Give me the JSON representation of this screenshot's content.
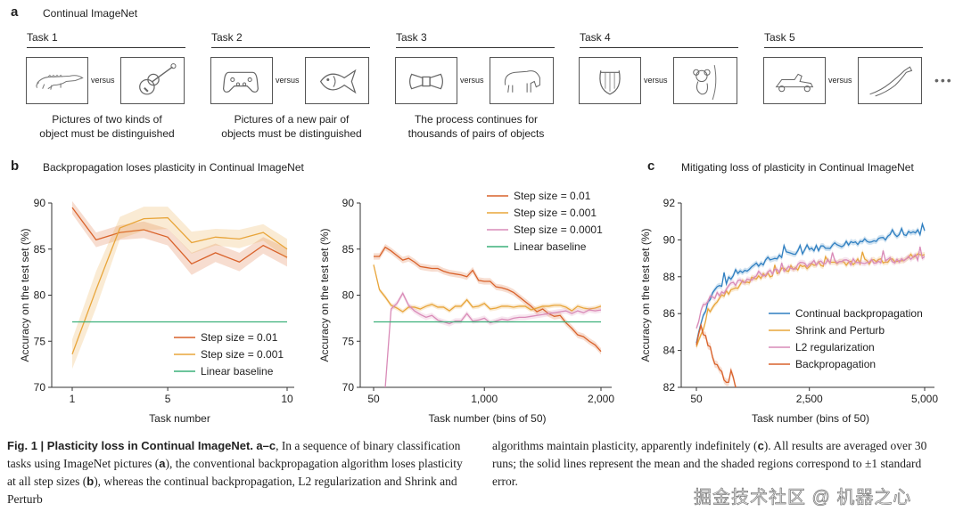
{
  "panel_a": {
    "letter": "a",
    "title": "Continual ImageNet",
    "versus": "versus",
    "more": "•••",
    "tasks": [
      {
        "label": "Task 1",
        "left_icon": "alligator-icon",
        "right_icon": "guitar-icon",
        "desc_line1": "Pictures of two kinds of",
        "desc_line2": "object must be distinguished"
      },
      {
        "label": "Task 2",
        "left_icon": "gamepad-icon",
        "right_icon": "fish-icon",
        "desc_line1": "Pictures of a new pair of",
        "desc_line2": "objects must be distinguished"
      },
      {
        "label": "Task 3",
        "left_icon": "bowtie-icon",
        "right_icon": "bison-icon",
        "desc_line1": "The process continues for",
        "desc_line2": "thousands of pairs of objects"
      },
      {
        "label": "Task 4",
        "left_icon": "lyre-icon",
        "right_icon": "koala-icon",
        "desc_line1": "",
        "desc_line2": ""
      },
      {
        "label": "Task 5",
        "left_icon": "go-kart-icon",
        "right_icon": "hammerhead-shark-icon",
        "desc_line1": "",
        "desc_line2": ""
      }
    ]
  },
  "panel_b": {
    "letter": "b",
    "title": "Backpropagation loses plasticity in Continual ImageNet"
  },
  "panel_c": {
    "letter": "c",
    "title": "Mitigating loss of plasticity in Continual ImageNet"
  },
  "colors": {
    "step_0_01": "#d9622b",
    "step_0_001": "#e8a53a",
    "step_0_0001": "#d98bb8",
    "baseline": "#3bb07a",
    "continual_bp": "#2f7fc1",
    "shrink_perturb": "#e8a53a",
    "l2": "#d98bb8",
    "backprop": "#d9622b"
  },
  "chart_data": [
    {
      "id": "b_left",
      "type": "line",
      "title": "",
      "xlabel": "Task number",
      "ylabel": "Accuracy on the test set (%)",
      "xlim": [
        1,
        10
      ],
      "ylim": [
        70,
        90
      ],
      "xticks": [
        1,
        5,
        10
      ],
      "xtick_labels": [
        "1",
        "5",
        "10"
      ],
      "yticks": [
        70,
        75,
        80,
        85,
        90
      ],
      "legend": "bottom-right",
      "x": [
        1,
        2,
        3,
        4,
        5,
        6,
        7,
        8,
        9,
        10
      ],
      "series": [
        {
          "name": "Step size = 0.01",
          "color_key": "step_0_01",
          "values": [
            89.5,
            86.0,
            86.8,
            87.1,
            86.3,
            83.4,
            84.6,
            83.6,
            85.4,
            84.1
          ],
          "err": [
            0.7,
            0.8,
            0.8,
            0.9,
            0.9,
            1.2,
            1.0,
            1.0,
            0.9,
            1.0
          ]
        },
        {
          "name": "Step size = 0.001",
          "color_key": "step_0_001",
          "values": [
            73.6,
            80.6,
            87.3,
            88.3,
            88.4,
            85.7,
            86.3,
            86.1,
            86.8,
            85.0
          ],
          "err": [
            1.6,
            2.0,
            1.2,
            1.3,
            1.2,
            1.2,
            0.9,
            1.0,
            0.9,
            1.1
          ]
        },
        {
          "name": "Linear baseline",
          "color_key": "baseline",
          "values": [
            77.1,
            77.1,
            77.1,
            77.1,
            77.1,
            77.1,
            77.1,
            77.1,
            77.1,
            77.1
          ],
          "err": null
        }
      ]
    },
    {
      "id": "b_right",
      "type": "line",
      "title": "",
      "xlabel": "Task number (bins of 50)",
      "ylabel": "Accuracy on the test set (%)",
      "xlim": [
        50,
        2000
      ],
      "ylim": [
        70,
        90
      ],
      "xticks": [
        50,
        1000,
        2000
      ],
      "xtick_labels": [
        "50",
        "1,000",
        "2,000"
      ],
      "yticks": [
        70,
        75,
        80,
        85,
        90
      ],
      "legend": "top-right",
      "x": [
        50,
        100,
        150,
        200,
        250,
        300,
        350,
        400,
        450,
        500,
        550,
        600,
        650,
        700,
        750,
        800,
        850,
        900,
        950,
        1000,
        1050,
        1100,
        1150,
        1200,
        1250,
        1300,
        1350,
        1400,
        1450,
        1500,
        1550,
        1600,
        1650,
        1700,
        1750,
        1800,
        1850,
        1900,
        1950,
        2000
      ],
      "series": [
        {
          "name": "Step size = 0.01",
          "color_key": "step_0_01",
          "values": [
            84.2,
            84.2,
            85.2,
            84.8,
            84.3,
            83.8,
            84.0,
            83.6,
            83.1,
            83.0,
            82.9,
            82.9,
            82.6,
            82.4,
            82.3,
            82.2,
            82.0,
            82.7,
            81.6,
            81.5,
            81.5,
            80.9,
            80.8,
            80.6,
            80.3,
            79.8,
            79.3,
            78.8,
            78.2,
            78.5,
            78.0,
            77.7,
            77.8,
            77.0,
            76.4,
            75.7,
            75.5,
            75.0,
            74.6,
            73.9
          ],
          "err": 0.35
        },
        {
          "name": "Step size = 0.001",
          "color_key": "step_0_001",
          "values": [
            83.3,
            80.6,
            79.8,
            78.9,
            78.6,
            78.2,
            78.7,
            78.7,
            78.5,
            78.8,
            79.0,
            78.7,
            78.7,
            78.3,
            78.8,
            78.8,
            79.5,
            78.7,
            78.8,
            79.1,
            78.5,
            78.6,
            78.8,
            78.8,
            78.7,
            78.8,
            78.8,
            78.4,
            78.6,
            78.8,
            78.8,
            78.9,
            78.9,
            78.7,
            78.3,
            78.8,
            78.6,
            78.5,
            78.6,
            78.8
          ],
          "err": 0.25
        },
        {
          "name": "Step size = 0.0001",
          "color_key": "step_0_0001",
          "values": [
            null,
            null,
            70.0,
            78.5,
            79.1,
            80.2,
            78.9,
            78.3,
            77.9,
            77.6,
            77.8,
            77.3,
            77.1,
            76.9,
            77.2,
            77.2,
            78.0,
            77.2,
            77.3,
            77.5,
            77.0,
            77.2,
            77.4,
            77.3,
            77.5,
            77.6,
            77.6,
            77.7,
            77.8,
            77.9,
            78.0,
            78.1,
            78.2,
            78.3,
            78.0,
            78.3,
            78.1,
            78.4,
            78.3,
            78.4
          ],
          "err": 0.3
        },
        {
          "name": "Linear baseline",
          "color_key": "baseline",
          "values": "constant",
          "constant": 77.1,
          "err": null
        }
      ]
    },
    {
      "id": "c",
      "type": "line",
      "title": "",
      "xlabel": "Task number (bins of 50)",
      "ylabel": "Accuracy on the test set (%)",
      "xlim": [
        50,
        5000
      ],
      "ylim": [
        82,
        92
      ],
      "xticks": [
        50,
        2500,
        5000
      ],
      "xtick_labels": [
        "50",
        "2,500",
        "5,000"
      ],
      "yticks": [
        82,
        84,
        86,
        88,
        90,
        92
      ],
      "legend": "bottom-right",
      "series": [
        {
          "name": "Continual backpropagation",
          "color_key": "continual_bp",
          "anchors": [
            [
              50,
              84.4
            ],
            [
              150,
              85.6
            ],
            [
              300,
              86.6
            ],
            [
              450,
              87.3
            ],
            [
              600,
              87.6
            ],
            [
              800,
              87.9
            ],
            [
              1000,
              88.3
            ],
            [
              1300,
              88.6
            ],
            [
              1600,
              88.9
            ],
            [
              2000,
              89.2
            ],
            [
              2500,
              89.5
            ],
            [
              3000,
              89.7
            ],
            [
              3500,
              89.9
            ],
            [
              4000,
              90.1
            ],
            [
              4500,
              90.2
            ],
            [
              5000,
              90.5
            ]
          ],
          "err": 0.15
        },
        {
          "name": "Shrink and Perturb",
          "color_key": "shrink_perturb",
          "anchors": [
            [
              50,
              84.2
            ],
            [
              150,
              84.8
            ],
            [
              300,
              86.1
            ],
            [
              450,
              86.6
            ],
            [
              600,
              86.9
            ],
            [
              800,
              87.3
            ],
            [
              1000,
              87.6
            ],
            [
              1300,
              87.9
            ],
            [
              1600,
              88.1
            ],
            [
              2000,
              88.4
            ],
            [
              2500,
              88.6
            ],
            [
              3000,
              88.8
            ],
            [
              3500,
              88.8
            ],
            [
              4000,
              88.9
            ],
            [
              4500,
              89.0
            ],
            [
              5000,
              89.2
            ]
          ],
          "err": 0.15
        },
        {
          "name": "L2 regularization",
          "color_key": "l2",
          "anchors": [
            [
              50,
              85.2
            ],
            [
              150,
              86.2
            ],
            [
              300,
              86.8
            ],
            [
              450,
              87.0
            ],
            [
              600,
              87.2
            ],
            [
              800,
              87.5
            ],
            [
              1000,
              87.7
            ],
            [
              1300,
              88.0
            ],
            [
              1600,
              88.2
            ],
            [
              2000,
              88.5
            ],
            [
              2500,
              88.7
            ],
            [
              3000,
              88.8
            ],
            [
              3500,
              88.8
            ],
            [
              4000,
              88.9
            ],
            [
              4500,
              88.9
            ],
            [
              5000,
              89.1
            ]
          ],
          "err": 0.15
        },
        {
          "name": "Backpropagation",
          "color_key": "backprop",
          "anchors": [
            [
              50,
              84.3
            ],
            [
              150,
              85.3
            ],
            [
              250,
              84.7
            ],
            [
              350,
              84.1
            ],
            [
              450,
              83.2
            ],
            [
              550,
              83.1
            ],
            [
              650,
              82.5
            ],
            [
              750,
              82.3
            ],
            [
              800,
              82.9
            ],
            [
              900,
              82.0
            ]
          ],
          "err": 0.2
        }
      ]
    }
  ],
  "caption": {
    "bold_intro": "Fig. 1 | Plasticity loss in Continual ImageNet.",
    "bold_range": "a–c",
    "left_text_1": ", In a sequence of binary classification tasks using ImageNet pictures (",
    "ref_a": "a",
    "left_text_2": "), the conventional backpropagation algorithm loses plasticity at all step sizes (",
    "ref_b": "b",
    "left_text_3": "), whereas the continual backpropagation, L2 regularization and Shrink and Perturb",
    "right_text_1": "algorithms maintain plasticity, apparently indefinitely (",
    "ref_c": "c",
    "right_text_2": "). All results are averaged over 30 runs; the solid lines represent the mean and the shaded regions correspond to ±1 standard error."
  },
  "watermark": "掘金技术社区 @ 机器之心"
}
